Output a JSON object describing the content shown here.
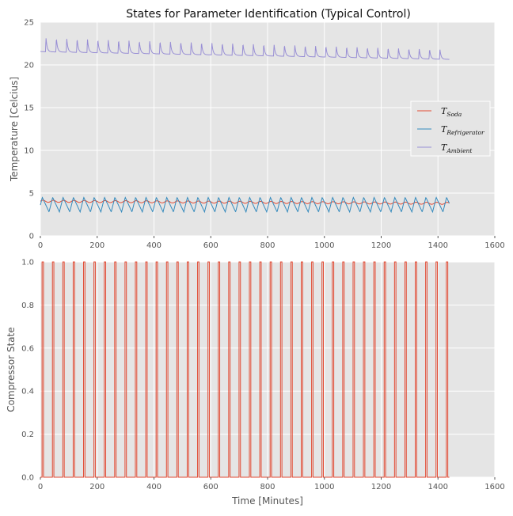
{
  "chart_data": [
    {
      "type": "line",
      "title": "States for Parameter Identification (Typical Control)",
      "xlabel": "",
      "ylabel": "Temperature [Celcius]",
      "xlim": [
        0,
        1600
      ],
      "ylim": [
        0,
        25
      ],
      "xticks": [
        0,
        200,
        400,
        600,
        800,
        1000,
        1200,
        1400,
        1600
      ],
      "yticks": [
        0,
        5,
        10,
        15,
        20,
        25
      ],
      "grid": true,
      "legend_position": "right",
      "series": [
        {
          "name": "T",
          "subscript": "Soda",
          "color": "#e24a33",
          "mean": 3.9,
          "amplitude": 0.12,
          "trend": -0.25
        },
        {
          "name": "T",
          "subscript": "Refrigerator",
          "color": "#348abd",
          "min": 2.8,
          "max": 4.5
        },
        {
          "name": "T",
          "subscript": "Ambient",
          "color": "#988ed5",
          "start_mean": 21.8,
          "end_mean": 20.9,
          "peak_start": 23.2,
          "peak_end": 21.8
        }
      ],
      "x_end": 1440,
      "period_minutes": 36.5
    },
    {
      "type": "line",
      "title": "",
      "xlabel": "Time [Minutes]",
      "ylabel": "Compressor State",
      "xlim": [
        0,
        1600
      ],
      "ylim": [
        0,
        1
      ],
      "xticks": [
        0,
        200,
        400,
        600,
        800,
        1000,
        1200,
        1400,
        1600
      ],
      "yticks": [
        0.0,
        0.2,
        0.4,
        0.6,
        0.8,
        1.0
      ],
      "grid": true,
      "series": [
        {
          "name": "Compressor State",
          "color": "#e24a33",
          "values": [
            0,
            1
          ],
          "on_minutes": 5
        }
      ],
      "x_end": 1440,
      "period_minutes": 36.5
    }
  ]
}
